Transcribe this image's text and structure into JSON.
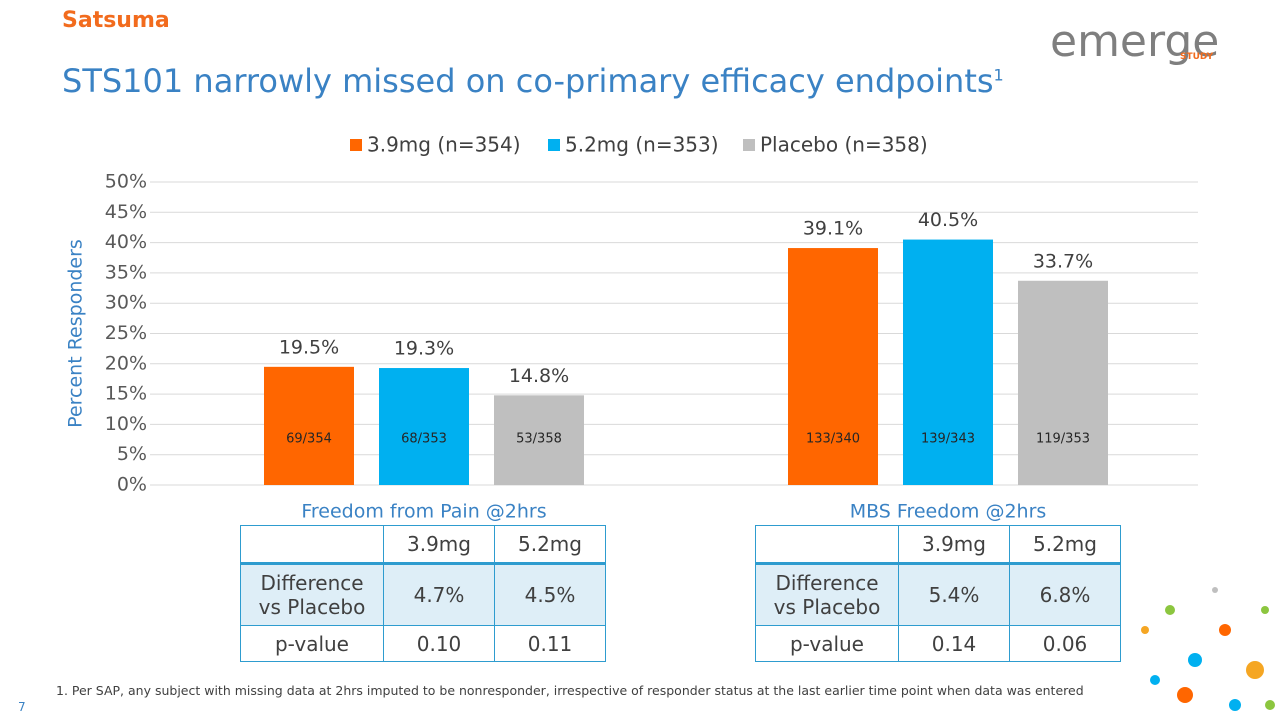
{
  "logo": {
    "name": "Satsuma"
  },
  "study_logo": {
    "name": "emerge",
    "subtitle": "STUDY"
  },
  "title": "STS101 narrowly missed on co-primary efficacy endpoints",
  "title_note": "1",
  "chart_data": {
    "type": "bar",
    "y_label": "Percent Responders",
    "categories": [
      "Freedom from Pain @2hrs",
      "MBS Freedom @2hrs"
    ],
    "series": [
      {
        "name": "3.9mg (n=354)",
        "color": "#ff6600",
        "values": [
          19.5,
          39.1
        ],
        "value_labels": [
          "19.5%",
          "39.1%"
        ],
        "count_labels": [
          "69/354",
          "133/340"
        ]
      },
      {
        "name": "5.2mg (n=353)",
        "color": "#00b0f0",
        "values": [
          19.3,
          40.5
        ],
        "value_labels": [
          "19.3%",
          "40.5%"
        ],
        "count_labels": [
          "68/353",
          "139/343"
        ]
      },
      {
        "name": "Placebo (n=358)",
        "color": "#bfbfbf",
        "values": [
          14.8,
          33.7
        ],
        "value_labels": [
          "14.8%",
          "33.7%"
        ],
        "count_labels": [
          "53/358",
          "119/353"
        ]
      }
    ],
    "ylim": [
      0,
      50
    ],
    "yticks": [
      {
        "value": 0,
        "label": "0%"
      },
      {
        "value": 5,
        "label": "5%"
      },
      {
        "value": 10,
        "label": "10%"
      },
      {
        "value": 15,
        "label": "15%"
      },
      {
        "value": 20,
        "label": "20%"
      },
      {
        "value": 25,
        "label": "25%"
      },
      {
        "value": 30,
        "label": "30%"
      },
      {
        "value": 35,
        "label": "35%"
      },
      {
        "value": 40,
        "label": "40%"
      },
      {
        "value": 45,
        "label": "45%"
      },
      {
        "value": 50,
        "label": "50%"
      }
    ],
    "grid": true,
    "legend": "top"
  },
  "tables": [
    {
      "header": [
        "3.9mg",
        "5.2mg"
      ],
      "rows": [
        {
          "label": "Difference vs Placebo",
          "values": [
            "4.7%",
            "4.5%"
          ]
        },
        {
          "label": "p-value",
          "values": [
            "0.10",
            "0.11"
          ]
        }
      ]
    },
    {
      "header": [
        "3.9mg",
        "5.2mg"
      ],
      "rows": [
        {
          "label": "Difference vs Placebo",
          "values": [
            "5.4%",
            "6.8%"
          ]
        },
        {
          "label": "p-value",
          "values": [
            "0.14",
            "0.06"
          ]
        }
      ]
    }
  ],
  "footnote": "1.  Per SAP, any subject with missing data at 2hrs imputed to be nonresponder, irrespective of responder status at the last earlier time point when data was entered",
  "page_number": "7"
}
